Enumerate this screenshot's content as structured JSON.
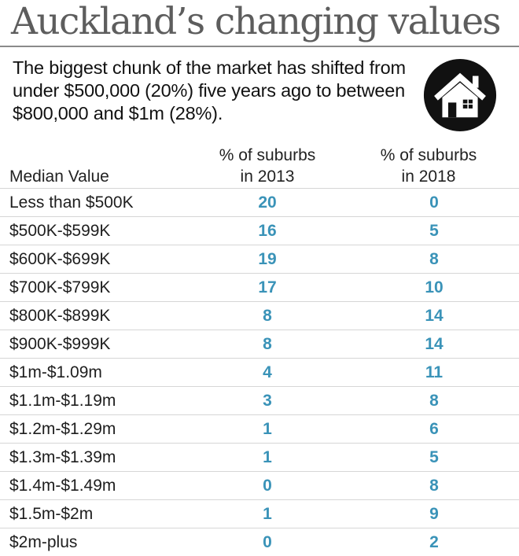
{
  "header": {
    "title": "Auckland’s changing values",
    "subtitle": "The biggest chunk of the market has shifted from under $500,000 (20%) five years ago to between $800,000 and $1m (28%)."
  },
  "icon": "house-icon",
  "colors": {
    "value_text": "#3a93b8",
    "title_text": "#5d5d5d",
    "icon_fill": "#111111"
  },
  "chart_data": {
    "type": "table",
    "columns": {
      "label": "Median Value",
      "y2013_line1": "% of suburbs",
      "y2013_line2": "in 2013",
      "y2018_line1": "% of suburbs",
      "y2018_line2": "in 2018"
    },
    "rows": [
      {
        "label": "Less than $500K",
        "v2013": 20,
        "v2018": 0
      },
      {
        "label": "$500K-$599K",
        "v2013": 16,
        "v2018": 5
      },
      {
        "label": "$600K-$699K",
        "v2013": 19,
        "v2018": 8
      },
      {
        "label": "$700K-$799K",
        "v2013": 17,
        "v2018": 10
      },
      {
        "label": "$800K-$899K",
        "v2013": 8,
        "v2018": 14
      },
      {
        "label": "$900K-$999K",
        "v2013": 8,
        "v2018": 14
      },
      {
        "label": "$1m-$1.09m",
        "v2013": 4,
        "v2018": 11
      },
      {
        "label": "$1.1m-$1.19m",
        "v2013": 3,
        "v2018": 8
      },
      {
        "label": "$1.2m-$1.29m",
        "v2013": 1,
        "v2018": 6
      },
      {
        "label": "$1.3m-$1.39m",
        "v2013": 1,
        "v2018": 5
      },
      {
        "label": "$1.4m-$1.49m",
        "v2013": 0,
        "v2018": 8
      },
      {
        "label": "$1.5m-$2m",
        "v2013": 1,
        "v2018": 9
      },
      {
        "label": "$2m-plus",
        "v2013": 0,
        "v2018": 2
      }
    ]
  }
}
